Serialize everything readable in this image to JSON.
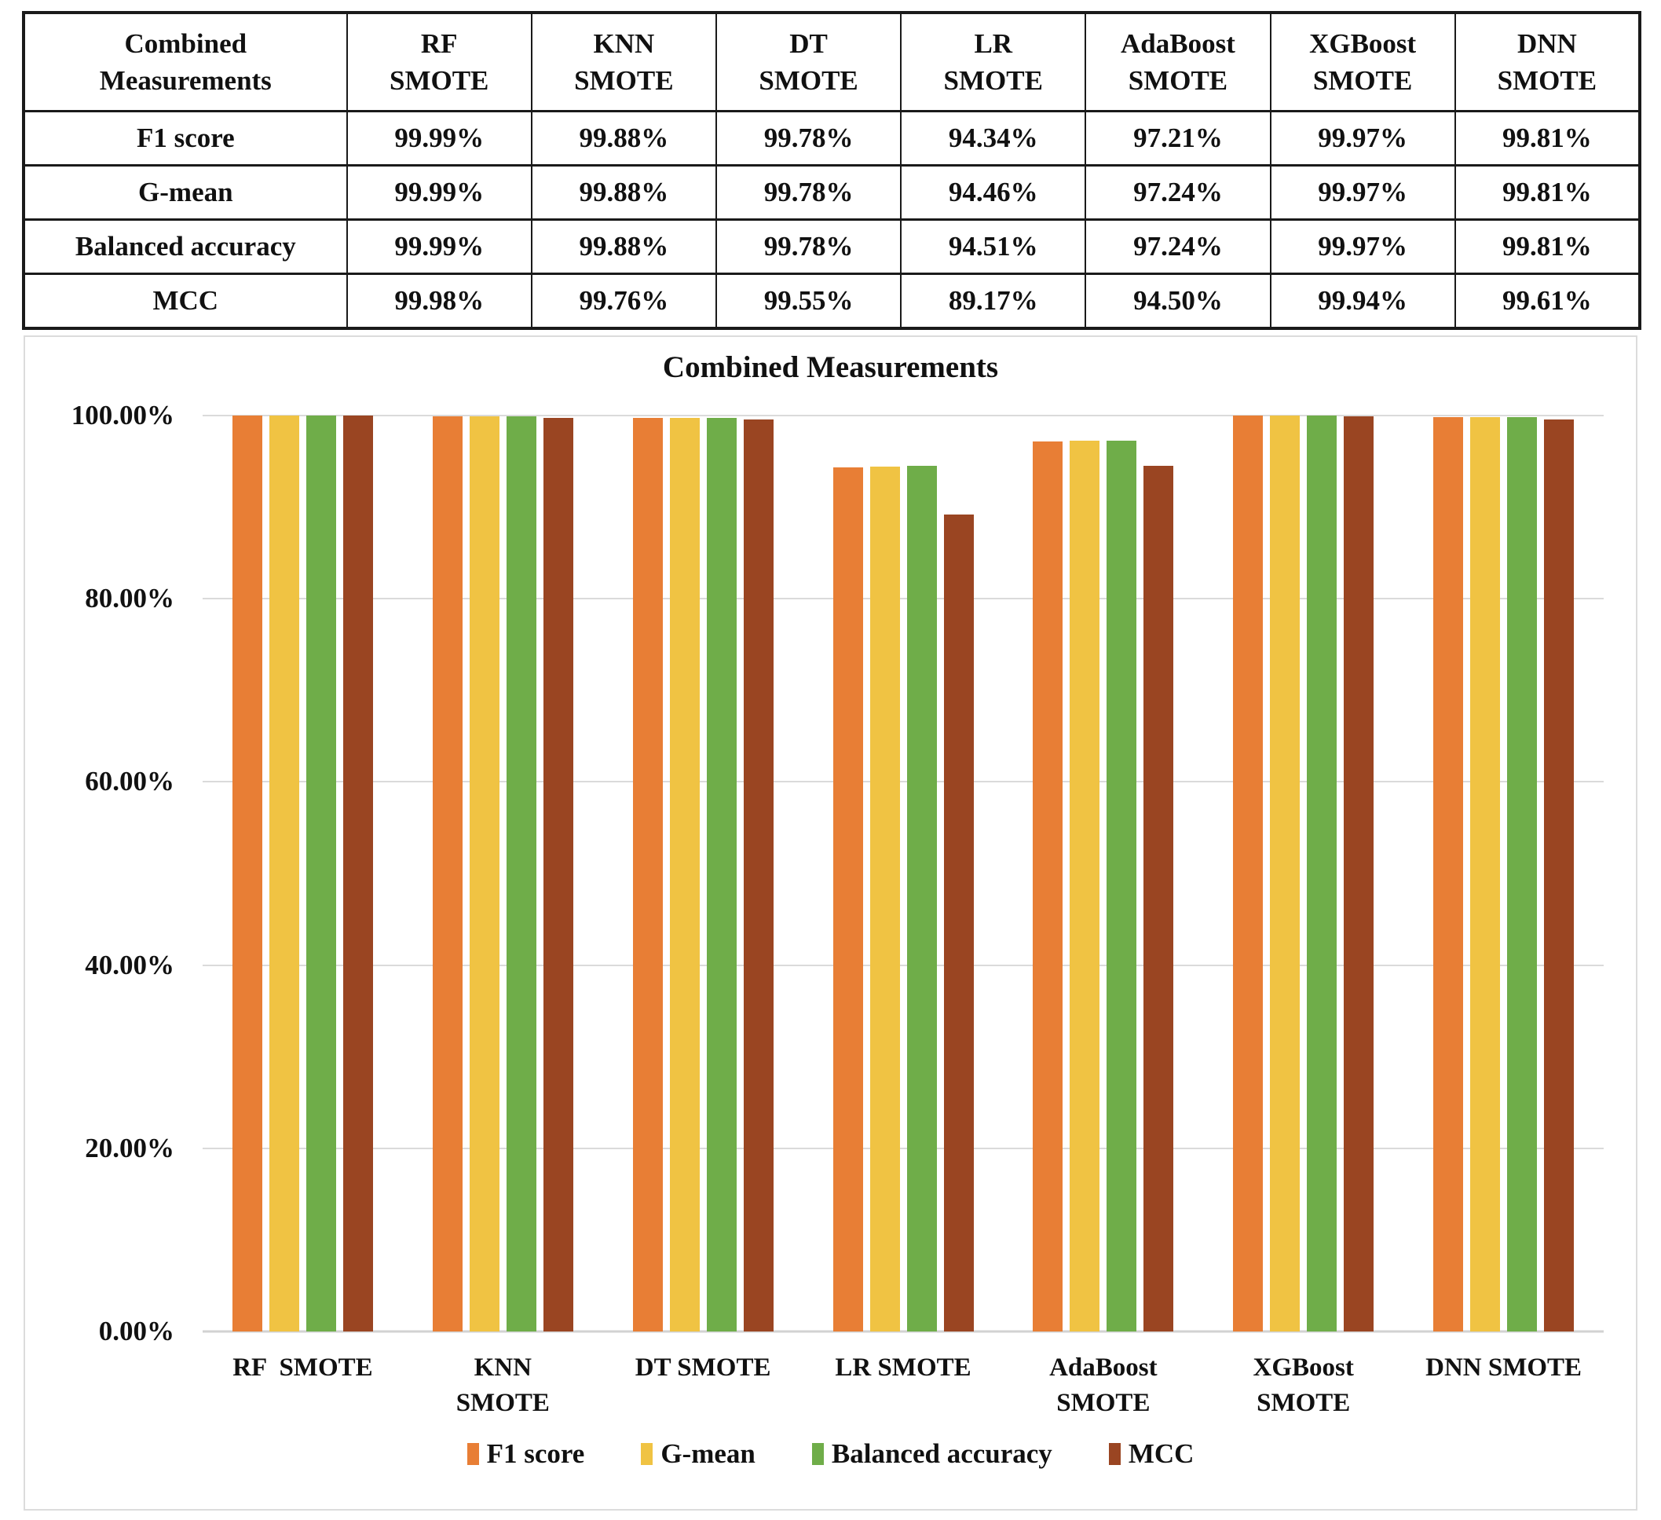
{
  "table": {
    "corner_header": "Combined\nMeasurements",
    "column_headers": [
      "RF\nSMOTE",
      "KNN\nSMOTE",
      "DT\nSMOTE",
      "LR\nSMOTE",
      "AdaBoost\nSMOTE",
      "XGBoost\nSMOTE",
      "DNN\nSMOTE"
    ],
    "rows": [
      {
        "label": "F1 score",
        "values": [
          "99.99%",
          "99.88%",
          "99.78%",
          "94.34%",
          "97.21%",
          "99.97%",
          "99.81%"
        ]
      },
      {
        "label": "G-mean",
        "values": [
          "99.99%",
          "99.88%",
          "99.78%",
          "94.46%",
          "97.24%",
          "99.97%",
          "99.81%"
        ]
      },
      {
        "label": "Balanced accuracy",
        "values": [
          "99.99%",
          "99.88%",
          "99.78%",
          "94.51%",
          "97.24%",
          "99.97%",
          "99.81%"
        ]
      },
      {
        "label": "MCC",
        "values": [
          "99.98%",
          "99.76%",
          "99.55%",
          "89.17%",
          "94.50%",
          "99.94%",
          "99.61%"
        ]
      }
    ]
  },
  "chart_data": {
    "type": "bar",
    "title": "Combined Measurements",
    "categories": [
      "RF  SMOTE",
      "KNN\nSMOTE",
      "DT SMOTE",
      "LR SMOTE",
      "AdaBoost\nSMOTE",
      "XGBoost\nSMOTE",
      "DNN SMOTE"
    ],
    "series": [
      {
        "name": "F1 score",
        "color": "#E87E35",
        "values": [
          99.99,
          99.88,
          99.78,
          94.34,
          97.21,
          99.97,
          99.81
        ]
      },
      {
        "name": "G-mean",
        "color": "#F0C343",
        "values": [
          99.99,
          99.88,
          99.78,
          94.46,
          97.24,
          99.97,
          99.81
        ]
      },
      {
        "name": "Balanced accuracy",
        "color": "#6FAD49",
        "values": [
          99.99,
          99.88,
          99.78,
          94.51,
          97.24,
          99.97,
          99.81
        ]
      },
      {
        "name": "MCC",
        "color": "#9A4522",
        "values": [
          99.98,
          99.76,
          99.55,
          89.17,
          94.5,
          99.94,
          99.61
        ]
      }
    ],
    "y_ticks": [
      {
        "label": "100.00%",
        "value": 100
      },
      {
        "label": "80.00%",
        "value": 80
      },
      {
        "label": "60.00%",
        "value": 60
      },
      {
        "label": "40.00%",
        "value": 40
      },
      {
        "label": "20.00%",
        "value": 20
      },
      {
        "label": "0.00%",
        "value": 0
      }
    ],
    "ylim": [
      0,
      100
    ],
    "xlabel": "",
    "ylabel": "",
    "grid": true,
    "legend_position": "bottom"
  },
  "colors": {
    "grid": "#DADADA",
    "panel_border": "#DCDCDC",
    "table_border": "#1A1A1A",
    "text": "#111111"
  }
}
